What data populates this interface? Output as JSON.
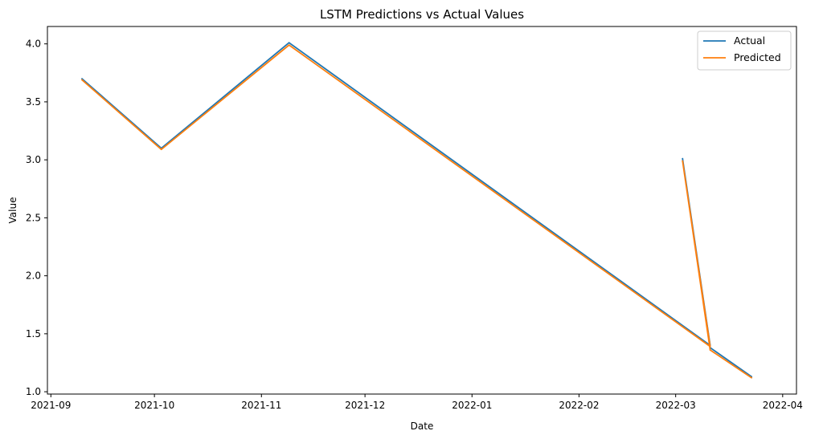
{
  "chart_data": {
    "type": "line",
    "title": "LSTM Predictions vs Actual Values",
    "xlabel": "Date",
    "ylabel": "Value",
    "x_ticks": [
      "2021-09",
      "2021-10",
      "2021-11",
      "2021-12",
      "2022-01",
      "2022-02",
      "2022-03",
      "2022-04"
    ],
    "y_ticks": [
      "1.0",
      "1.5",
      "2.0",
      "2.5",
      "3.0",
      "3.5",
      "4.0"
    ],
    "ylim": [
      0.98,
      4.15
    ],
    "xlim": [
      "2021-08-31",
      "2022-04-05"
    ],
    "grid": false,
    "legend_position": "top-right",
    "series": [
      {
        "name": "Actual",
        "color": "#1f77b4",
        "points": [
          {
            "x": "2021-09-10",
            "y": 3.7
          },
          {
            "x": "2021-10-03",
            "y": 3.1
          },
          {
            "x": "2021-11-09",
            "y": 4.01
          },
          {
            "x": "2022-03-11",
            "y": 1.4
          },
          {
            "x": "2022-03-03",
            "y": 3.01
          },
          {
            "x": "2022-03-11",
            "y": 1.38
          },
          {
            "x": "2022-03-23",
            "y": 1.13
          }
        ]
      },
      {
        "name": "Predicted",
        "color": "#ff7f0e",
        "points": [
          {
            "x": "2021-09-10",
            "y": 3.69
          },
          {
            "x": "2021-10-03",
            "y": 3.09
          },
          {
            "x": "2021-11-09",
            "y": 3.99
          },
          {
            "x": "2022-03-11",
            "y": 1.39
          },
          {
            "x": "2022-03-03",
            "y": 2.99
          },
          {
            "x": "2022-03-11",
            "y": 1.36
          },
          {
            "x": "2022-03-23",
            "y": 1.12
          }
        ]
      }
    ]
  }
}
